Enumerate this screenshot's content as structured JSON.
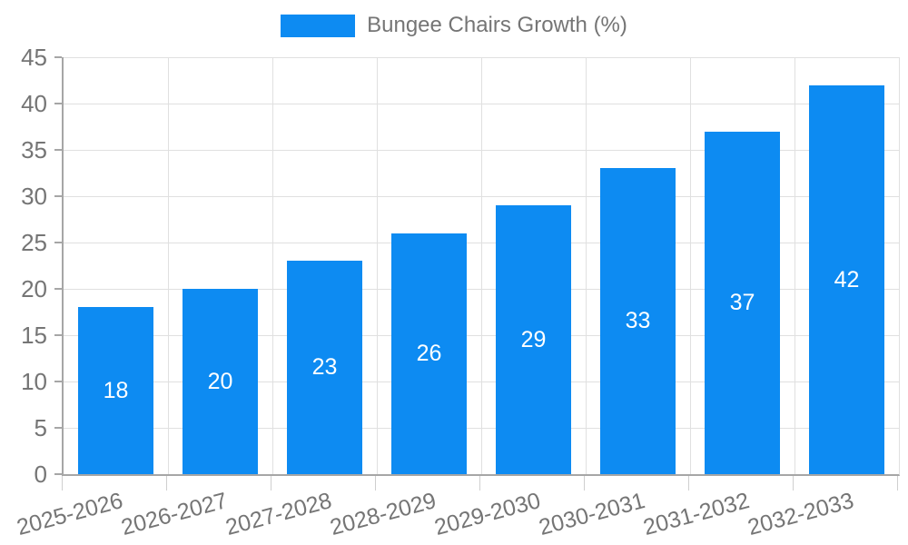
{
  "chart_data": {
    "type": "bar",
    "title": "Bungee Chairs Growth (%)",
    "categories": [
      "2025-2026",
      "2026-2027",
      "2027-2028",
      "2028-2029",
      "2029-2030",
      "2030-2031",
      "2031-2032",
      "2032-2033"
    ],
    "series": [
      {
        "name": "Bungee Chairs Growth (%)",
        "values": [
          18,
          20,
          23,
          26,
          29,
          33,
          37,
          42
        ]
      }
    ],
    "xlabel": "",
    "ylabel": "",
    "ylim": [
      0,
      45
    ],
    "yticks": [
      0,
      5,
      10,
      15,
      20,
      25,
      30,
      35,
      40,
      45
    ],
    "grid": "horizontal and vertical light gray gridlines",
    "legend_position": "top-center",
    "value_labels": "inside bars, vertically centered, white"
  },
  "legend": {
    "swatch_icon": "legend-color-swatch",
    "label": "Bungee Chairs Growth (%)"
  },
  "colors": {
    "bar": "#0d8bf2",
    "grid": "#e0e0e0",
    "axis": "#a6a6a6",
    "x_tick": "#cfcfcf",
    "axis_text": "#757575",
    "value_text": "#ffffff",
    "background": "#ffffff"
  }
}
